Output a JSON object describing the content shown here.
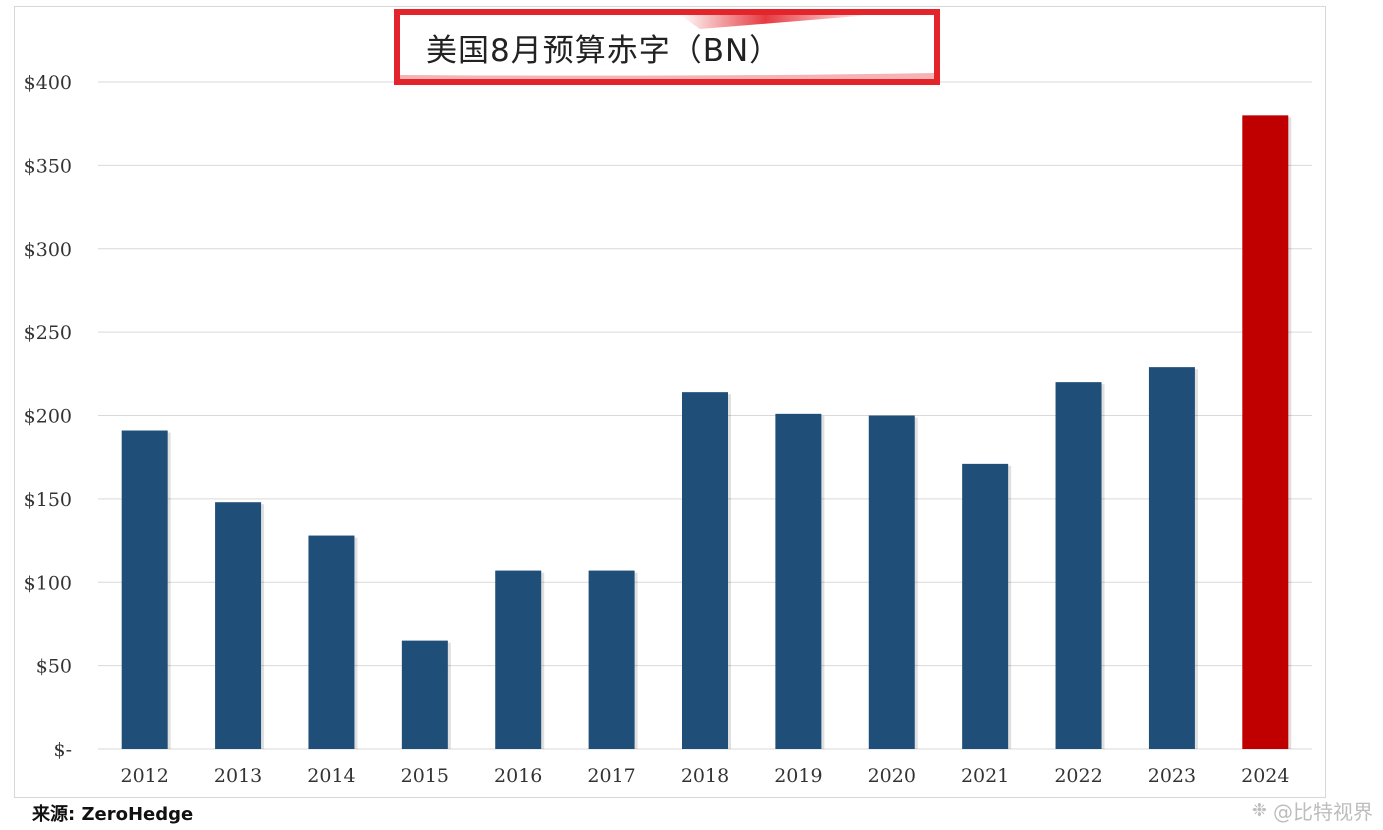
{
  "chart_data": {
    "type": "bar",
    "title": "美国8月预算赤字（BN）",
    "categories": [
      "2012",
      "2013",
      "2014",
      "2015",
      "2016",
      "2017",
      "2018",
      "2019",
      "2020",
      "2021",
      "2022",
      "2023",
      "2024"
    ],
    "values": [
      191,
      148,
      128,
      65,
      107,
      107,
      214,
      201,
      200,
      171,
      220,
      229,
      380
    ],
    "highlight_index": 12,
    "ylim": [
      0,
      400
    ],
    "yticks": [
      0,
      50,
      100,
      150,
      200,
      250,
      300,
      350,
      400
    ],
    "ytick_labels": [
      "$-",
      "$50",
      "$100",
      "$150",
      "$200",
      "$250",
      "$300",
      "$350",
      "$400"
    ],
    "xlabel": "",
    "ylabel": "",
    "grid": "horizontal",
    "colors": {
      "bar": "#1f4e79",
      "highlight": "#c00000",
      "grid": "#d9d9d9",
      "title_border": "#e3242b"
    }
  },
  "source_note": "来源: ZeroHedge",
  "watermark": {
    "icon": "wechat-icon",
    "text": "@比特视界"
  }
}
